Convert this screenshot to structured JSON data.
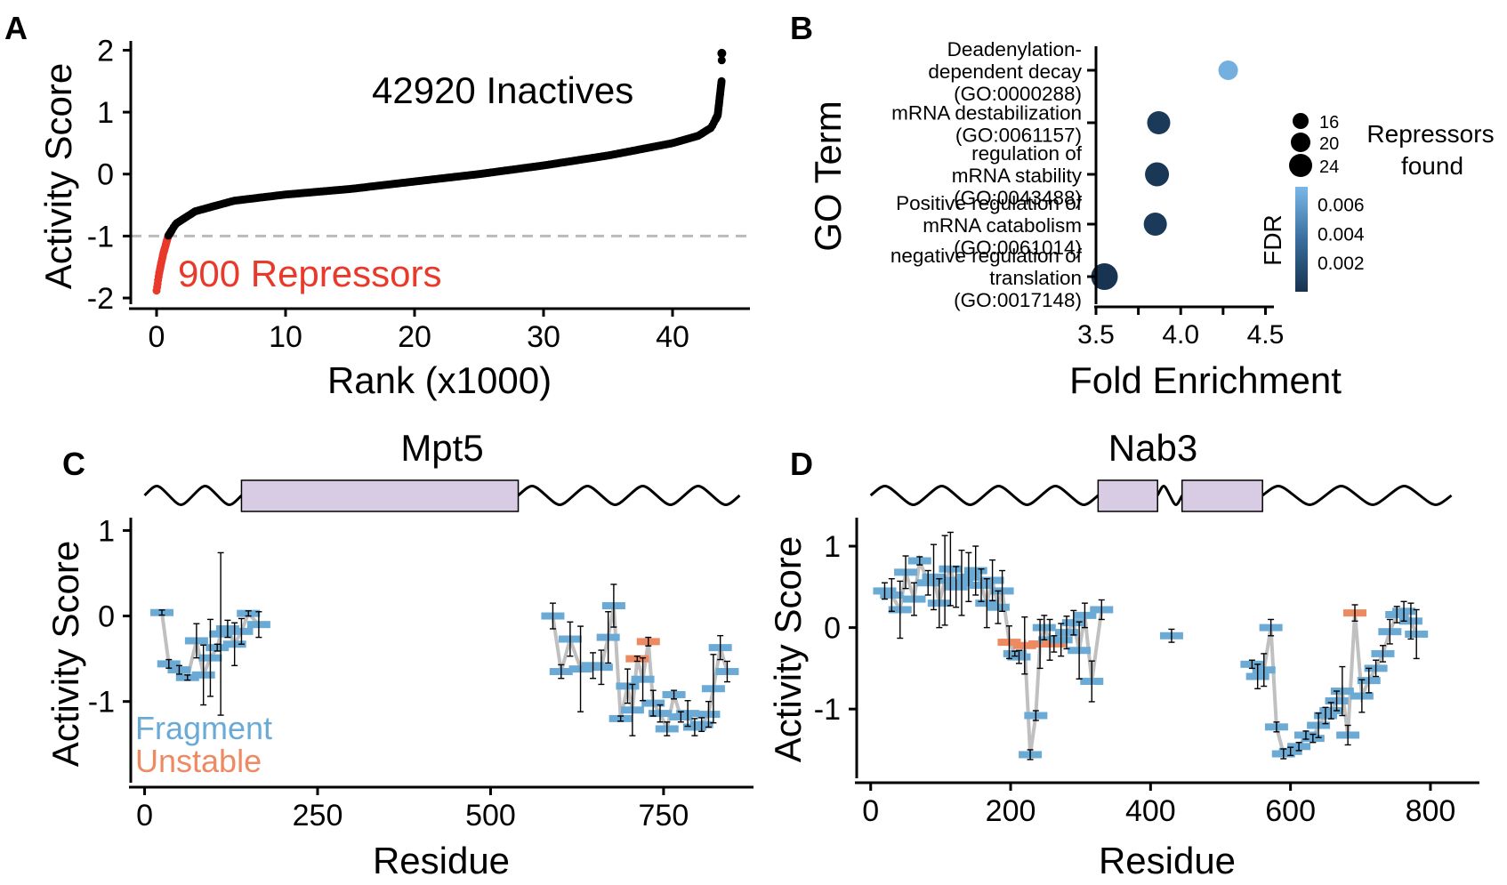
{
  "panels": {
    "A": {
      "letter": "A"
    },
    "B": {
      "letter": "B"
    },
    "C": {
      "letter": "C"
    },
    "D": {
      "letter": "D"
    }
  },
  "colors": {
    "points": "#000000",
    "repressors": "#e8392a",
    "threshold_line": "#bbbbbb",
    "fragment": "#6aaad5",
    "unstable": "#ee8a62",
    "connector": "#c0c0c0",
    "domain_fill": "#d8cce4",
    "fdr_low": "#17324f",
    "fdr_high": "#7ab8e8"
  },
  "chart_data": [
    {
      "panel": "A",
      "type": "scatter",
      "xlabel": "Rank (x1000)",
      "ylabel": "Activity Score",
      "xlim": [
        -2,
        46
      ],
      "ylim": [
        -2.1,
        2.15
      ],
      "xticks": [
        0,
        10,
        20,
        30,
        40
      ],
      "yticks": [
        2,
        1,
        0,
        -1,
        -2
      ],
      "threshold": -1,
      "annotations": {
        "inactives": "42920 Inactives",
        "repressors": "900 Repressors"
      },
      "curve": [
        [
          0,
          -1.88
        ],
        [
          0.2,
          -1.6
        ],
        [
          0.5,
          -1.3
        ],
        [
          0.9,
          -1.0
        ],
        [
          1.5,
          -0.8
        ],
        [
          3,
          -0.6
        ],
        [
          6,
          -0.43
        ],
        [
          10,
          -0.33
        ],
        [
          15,
          -0.24
        ],
        [
          20,
          -0.12
        ],
        [
          25,
          0.0
        ],
        [
          30,
          0.14
        ],
        [
          35,
          0.3
        ],
        [
          40,
          0.5
        ],
        [
          42,
          0.62
        ],
        [
          43,
          0.75
        ],
        [
          43.5,
          0.95
        ],
        [
          43.8,
          1.5
        ],
        [
          43.82,
          1.95
        ]
      ],
      "repressor_count": 900,
      "inactive_count": 42920
    },
    {
      "panel": "B",
      "type": "scatter",
      "xlabel": "Fold Enrichment",
      "ylabel": "GO Term",
      "xlim": [
        3.5,
        4.55
      ],
      "xticks": [
        "3.5",
        "4.0",
        "4.5"
      ],
      "categories": [
        [
          "Deadenylation-",
          "dependent decay",
          "(GO:0000288)"
        ],
        [
          "mRNA destabilization",
          "(GO:0061157)"
        ],
        [
          "regulation of",
          "mRNA stability",
          "(GO:0043488)"
        ],
        [
          "Positive regulation of",
          "mRNA catabolism",
          "(GO:0061014)"
        ],
        [
          "negative regulation of",
          "translation",
          "(GO:0017148)"
        ]
      ],
      "points": [
        {
          "fold": 4.28,
          "count": 16,
          "fdr": 0.0068
        },
        {
          "fold": 3.87,
          "count": 20,
          "fdr": 0.0004
        },
        {
          "fold": 3.86,
          "count": 21,
          "fdr": 0.0003
        },
        {
          "fold": 3.85,
          "count": 20,
          "fdr": 0.0004
        },
        {
          "fold": 3.55,
          "count": 24,
          "fdr": 0.0001
        }
      ],
      "size_legend": {
        "title": [
          "Repressors",
          "found"
        ],
        "values": [
          16,
          20,
          24
        ]
      },
      "color_legend": {
        "title": "FDR",
        "range": [
          0.0,
          0.0072
        ],
        "ticks": [
          "0.006",
          "0.004",
          "0.002"
        ]
      }
    },
    {
      "panel": "C",
      "type": "scatter",
      "title": "Mpt5",
      "xlabel": "Residue",
      "ylabel": "Activity Score",
      "xlim": [
        -20,
        880
      ],
      "ylim": [
        -1.95,
        1.15
      ],
      "xticks": [
        0,
        250,
        500,
        750
      ],
      "yticks": [
        1,
        0,
        -1
      ],
      "legend": [
        "Fragment",
        "Unstable"
      ],
      "domains": [
        [
          140,
          540
        ]
      ],
      "protein_length": 860,
      "fragments": [
        [
          25,
          0.04,
          0.03,
          "f"
        ],
        [
          35,
          -0.56,
          0.05,
          "f"
        ],
        [
          50,
          -0.63,
          0.05,
          "f"
        ],
        [
          62,
          -0.72,
          0.03,
          "f"
        ],
        [
          75,
          -0.29,
          0.2,
          "f"
        ],
        [
          85,
          -0.69,
          0.35,
          "f"
        ],
        [
          95,
          -0.49,
          0.45,
          "f"
        ],
        [
          105,
          -0.37,
          0.04,
          "f"
        ],
        [
          110,
          -0.21,
          0.95,
          "f"
        ],
        [
          120,
          -0.15,
          0.1,
          "f"
        ],
        [
          130,
          -0.33,
          0.25,
          "f"
        ],
        [
          140,
          -0.18,
          0.15,
          "f"
        ],
        [
          150,
          0.03,
          0.03,
          "f"
        ],
        [
          165,
          -0.1,
          0.15,
          "f"
        ],
        [
          590,
          0.0,
          0.15,
          "f"
        ],
        [
          602,
          -0.65,
          0.08,
          "f"
        ],
        [
          615,
          -0.27,
          0.2,
          "f"
        ],
        [
          630,
          -0.62,
          0.5,
          "f"
        ],
        [
          648,
          -0.58,
          0.15,
          "f"
        ],
        [
          660,
          -0.6,
          0.2,
          "f"
        ],
        [
          670,
          -0.25,
          0.3,
          "f"
        ],
        [
          678,
          0.12,
          0.25,
          "f"
        ],
        [
          688,
          -1.2,
          0.03,
          "f"
        ],
        [
          698,
          -0.82,
          0.2,
          "f"
        ],
        [
          705,
          -1.1,
          0.3,
          "f"
        ],
        [
          712,
          -0.5,
          0.03,
          "u"
        ],
        [
          720,
          -0.74,
          0.25,
          "f"
        ],
        [
          728,
          -0.3,
          0.05,
          "u"
        ],
        [
          735,
          -1.02,
          0.15,
          "f"
        ],
        [
          745,
          -1.14,
          0.1,
          "f"
        ],
        [
          755,
          -1.32,
          0.08,
          "f"
        ],
        [
          765,
          -0.92,
          0.05,
          "f"
        ],
        [
          775,
          -1.18,
          0.06,
          "f"
        ],
        [
          785,
          -1.14,
          0.15,
          "f"
        ],
        [
          795,
          -1.3,
          0.1,
          "f"
        ],
        [
          805,
          -1.27,
          0.08,
          "f"
        ],
        [
          815,
          -1.15,
          0.15,
          "f"
        ],
        [
          822,
          -0.85,
          0.4,
          "f"
        ],
        [
          832,
          -0.37,
          0.14,
          "f"
        ],
        [
          842,
          -0.65,
          0.12,
          "f"
        ]
      ]
    },
    {
      "panel": "D",
      "type": "scatter",
      "title": "Nab3",
      "xlabel": "Residue",
      "ylabel": "Activity Score",
      "xlim": [
        -20,
        870
      ],
      "ylim": [
        -1.85,
        1.35
      ],
      "xticks": [
        0,
        200,
        400,
        600,
        800
      ],
      "yticks": [
        1,
        0,
        -1
      ],
      "domains": [
        [
          325,
          410
        ],
        [
          445,
          560
        ]
      ],
      "protein_length": 830,
      "fragments": [
        [
          20,
          0.45,
          0.1,
          "f"
        ],
        [
          30,
          0.4,
          0.2,
          "f"
        ],
        [
          42,
          0.22,
          0.35,
          "f"
        ],
        [
          50,
          0.68,
          0.2,
          "f"
        ],
        [
          62,
          0.35,
          0.2,
          "f"
        ],
        [
          70,
          0.82,
          0.05,
          "f"
        ],
        [
          82,
          0.55,
          0.15,
          "f"
        ],
        [
          90,
          0.62,
          0.4,
          "f"
        ],
        [
          98,
          0.3,
          0.3,
          "f"
        ],
        [
          106,
          0.58,
          0.55,
          "f"
        ],
        [
          114,
          0.72,
          0.45,
          "f"
        ],
        [
          122,
          0.5,
          0.25,
          "f"
        ],
        [
          130,
          0.55,
          0.4,
          "f"
        ],
        [
          140,
          0.62,
          0.3,
          "f"
        ],
        [
          150,
          0.7,
          0.3,
          "f"
        ],
        [
          158,
          0.52,
          0.2,
          "f"
        ],
        [
          166,
          0.3,
          0.3,
          "f"
        ],
        [
          174,
          0.58,
          0.25,
          "f"
        ],
        [
          182,
          0.25,
          0.2,
          "f"
        ],
        [
          188,
          0.45,
          0.25,
          "f"
        ],
        [
          198,
          -0.18,
          0.2,
          "u"
        ],
        [
          206,
          -0.32,
          0.03,
          "f"
        ],
        [
          212,
          -0.36,
          0.08,
          "f"
        ],
        [
          220,
          -0.22,
          0.35,
          "u"
        ],
        [
          228,
          -1.56,
          0.06,
          "f"
        ],
        [
          236,
          -1.08,
          0.06,
          "f"
        ],
        [
          242,
          -0.2,
          0.3,
          "u"
        ],
        [
          248,
          0.0,
          0.15,
          "f"
        ],
        [
          256,
          -0.15,
          0.25,
          "f"
        ],
        [
          262,
          -0.2,
          0.1,
          "u"
        ],
        [
          272,
          -0.15,
          0.2,
          "f"
        ],
        [
          280,
          -0.06,
          0.2,
          "f"
        ],
        [
          290,
          0.06,
          0.15,
          "f"
        ],
        [
          298,
          -0.28,
          0.35,
          "f"
        ],
        [
          306,
          0.15,
          0.15,
          "f"
        ],
        [
          316,
          -0.66,
          0.25,
          "f"
        ],
        [
          330,
          0.22,
          0.12,
          "f"
        ],
        [
          430,
          -0.1,
          0.08,
          "f"
        ],
        [
          545,
          -0.45,
          0.05,
          "f"
        ],
        [
          553,
          -0.6,
          0.15,
          "f"
        ],
        [
          562,
          -0.52,
          0.2,
          "f"
        ],
        [
          572,
          0.0,
          0.1,
          "f"
        ],
        [
          580,
          -1.22,
          0.06,
          "f"
        ],
        [
          590,
          -1.55,
          0.06,
          "f"
        ],
        [
          600,
          -1.52,
          0.05,
          "f"
        ],
        [
          612,
          -1.46,
          0.05,
          "f"
        ],
        [
          622,
          -1.32,
          0.05,
          "f"
        ],
        [
          632,
          -1.36,
          0.05,
          "f"
        ],
        [
          640,
          -1.2,
          0.15,
          "f"
        ],
        [
          650,
          -1.08,
          0.1,
          "f"
        ],
        [
          658,
          -1.02,
          0.1,
          "f"
        ],
        [
          666,
          -0.9,
          0.12,
          "f"
        ],
        [
          674,
          -0.78,
          0.3,
          "f"
        ],
        [
          682,
          -1.32,
          0.12,
          "f"
        ],
        [
          692,
          0.18,
          0.1,
          "u"
        ],
        [
          702,
          -0.84,
          0.2,
          "f"
        ],
        [
          712,
          -0.65,
          0.15,
          "f"
        ],
        [
          722,
          -0.5,
          0.1,
          "f"
        ],
        [
          732,
          -0.32,
          0.1,
          "f"
        ],
        [
          742,
          -0.05,
          0.15,
          "f"
        ],
        [
          752,
          0.16,
          0.1,
          "f"
        ],
        [
          762,
          0.2,
          0.12,
          "f"
        ],
        [
          772,
          0.08,
          0.22,
          "f"
        ],
        [
          780,
          -0.08,
          0.3,
          "f"
        ]
      ]
    }
  ]
}
